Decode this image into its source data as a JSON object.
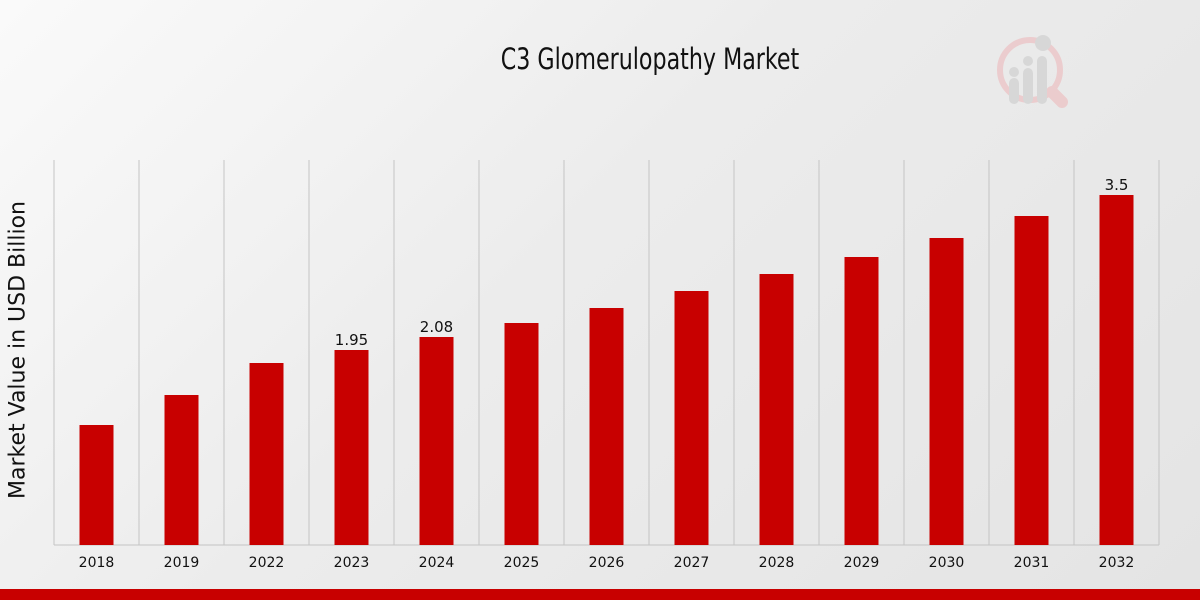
{
  "chart_data": {
    "type": "bar",
    "title": "C3 Glomerulopathy Market",
    "xlabel": "",
    "ylabel": "Market Value in USD Billion",
    "categories": [
      "2018",
      "2019",
      "2022",
      "2023",
      "2024",
      "2025",
      "2026",
      "2027",
      "2028",
      "2029",
      "2030",
      "2031",
      "2032"
    ],
    "values": [
      1.2,
      1.5,
      1.82,
      1.95,
      2.08,
      2.22,
      2.37,
      2.54,
      2.71,
      2.88,
      3.07,
      3.29,
      3.5
    ],
    "data_labels": {
      "2023": "1.95",
      "2024": "2.08",
      "2032": "3.5"
    },
    "ylim": [
      0,
      3.85
    ],
    "grid": "vertical",
    "bar_color": "#c80000"
  },
  "colors": {
    "accent": "#c80000"
  }
}
